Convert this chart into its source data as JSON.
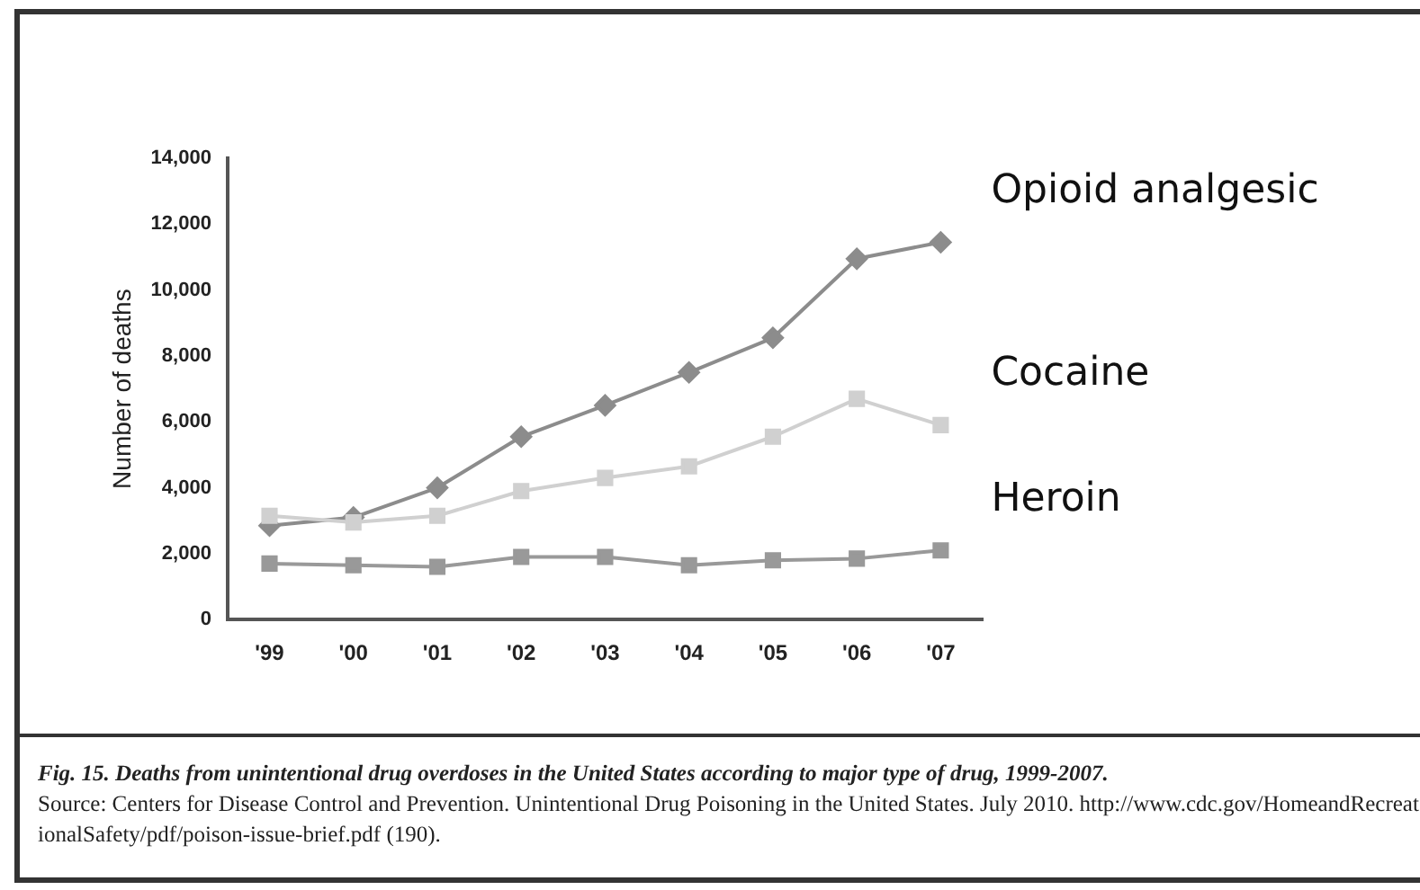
{
  "chart_data": {
    "type": "line",
    "title": "Fig. 15. Deaths from unintentional drug overdoses in the United States according to major type of drug, 1999-2007.",
    "ylabel": "Number of deaths",
    "categories": [
      "'99",
      "'00",
      "'01",
      "'02",
      "'03",
      "'04",
      "'05",
      "'06",
      "'07"
    ],
    "series": [
      {
        "name": "Opioid analgesic",
        "color": "#8c8c8c",
        "marker": "diamond",
        "values": [
          2850,
          3100,
          4000,
          5550,
          6500,
          7500,
          8550,
          10950,
          11450
        ]
      },
      {
        "name": "Cocaine",
        "color": "#d0d0d0",
        "marker": "square",
        "values": [
          3150,
          2950,
          3150,
          3900,
          4300,
          4650,
          5550,
          6700,
          5900
        ]
      },
      {
        "name": "Heroin",
        "color": "#999999",
        "marker": "square",
        "values": [
          1700,
          1650,
          1600,
          1900,
          1900,
          1650,
          1800,
          1850,
          2100
        ]
      }
    ],
    "ylim": [
      0,
      14000
    ],
    "yticks": [
      0,
      {
        "value": 2000,
        "label": "2,000"
      },
      {
        "value": 4000,
        "label": "4,000"
      },
      {
        "value": 6000,
        "label": "6,000"
      },
      {
        "value": 8000,
        "label": "8,000"
      },
      {
        "value": 10000,
        "label": "10,000"
      },
      {
        "value": 12000,
        "label": "12,000"
      },
      {
        "value": 14000,
        "label": "14,000"
      }
    ],
    "grid": false,
    "legend": false,
    "line_style": "solid",
    "annotations": [
      "Source: Centers for Disease Control and Prevention. Unintentional Drug Poisoning in the United States. July 2010.  http://www.cdc.gov/HomeandRecreationalSafety/pdf/poison-issue-brief.pdf (190)."
    ]
  }
}
